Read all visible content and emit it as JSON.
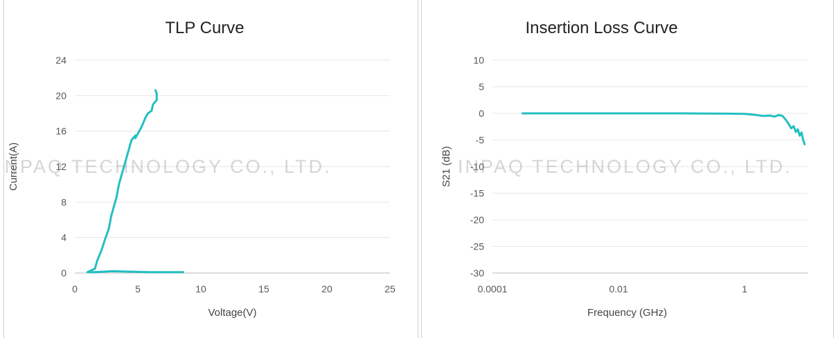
{
  "watermark": "INPAQ TECHNOLOGY CO., LTD.",
  "chart_data": [
    {
      "type": "line",
      "title": "TLP Curve",
      "xlabel": "Voltage(V)",
      "ylabel": "Current(A)",
      "xlim": [
        0,
        25
      ],
      "ylim": [
        0,
        24
      ],
      "xticks": [
        0,
        5,
        10,
        15,
        20,
        25
      ],
      "yticks": [
        0,
        4,
        8,
        12,
        16,
        20,
        24
      ],
      "series_color": "#22bfc1",
      "grid": true,
      "series": [
        {
          "x": [
            8.6,
            6.0,
            3.0,
            1.5,
            1.0,
            1.6,
            1.7,
            1.8,
            2.1,
            2.4,
            2.7,
            2.9,
            3.1,
            3.3,
            3.5,
            3.8,
            4.1,
            4.3,
            4.5,
            4.8,
            4.8,
            5.3,
            5.6,
            5.8,
            6.1,
            6.2,
            6.5,
            6.5,
            6.4
          ],
          "y": [
            0.1,
            0.1,
            0.2,
            0.1,
            0.1,
            0.5,
            1.0,
            1.5,
            2.5,
            3.8,
            5.0,
            6.5,
            7.5,
            8.5,
            10.0,
            11.5,
            13.0,
            14.0,
            15.0,
            15.5,
            15.2,
            16.5,
            17.5,
            18.0,
            18.3,
            19.0,
            19.5,
            20.2,
            20.6
          ]
        }
      ]
    },
    {
      "type": "line",
      "title": "Insertion Loss Curve",
      "xlabel": "Frequency (GHz)",
      "ylabel": "S21 (dB)",
      "xscale": "log",
      "xlim": [
        0.0001,
        10
      ],
      "ylim": [
        -30,
        10
      ],
      "xticks": [
        0.0001,
        0.01,
        1
      ],
      "xtick_labels": [
        "0.0001",
        "0.01",
        "1"
      ],
      "yticks": [
        10,
        5,
        0,
        -5,
        -10,
        -15,
        -20,
        -25,
        -30
      ],
      "series_color": "#22bfc1",
      "grid": true,
      "series": [
        {
          "x": [
            0.0003,
            0.001,
            0.01,
            0.1,
            0.5,
            1,
            1.5,
            2,
            2.5,
            3,
            3.5,
            4,
            4.5,
            5,
            5.5,
            6,
            6.5,
            7,
            7.5,
            8,
            8.5,
            9
          ],
          "y": [
            0.0,
            0.0,
            0.0,
            0.0,
            -0.05,
            -0.1,
            -0.3,
            -0.5,
            -0.4,
            -0.6,
            -0.3,
            -0.5,
            -1.2,
            -2.0,
            -2.8,
            -2.4,
            -3.5,
            -3.0,
            -4.2,
            -3.6,
            -5.0,
            -5.8
          ]
        }
      ]
    }
  ]
}
